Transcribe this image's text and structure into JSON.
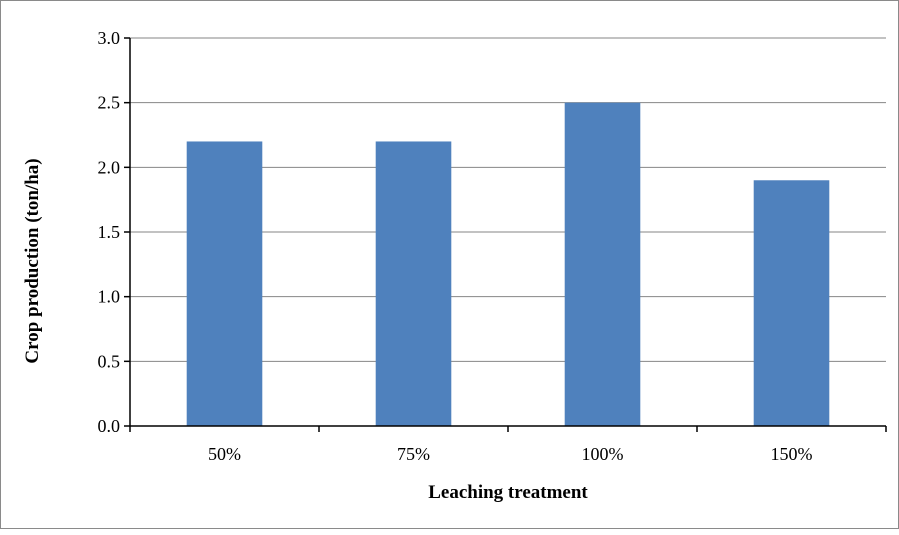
{
  "chart_data": {
    "type": "bar",
    "categories": [
      "50%",
      "75%",
      "100%",
      "150%"
    ],
    "values": [
      2.2,
      2.2,
      2.5,
      1.9
    ],
    "xlabel": "Leaching treatment",
    "ylabel": "Crop production (ton/ha)",
    "ylim": [
      0,
      3.0
    ],
    "yticks": [
      "0.0",
      "0.5",
      "1.0",
      "1.5",
      "2.0",
      "2.5",
      "3.0"
    ],
    "grid": true,
    "legend": "none",
    "colors": {
      "bar": "#4f81bd",
      "grid": "#868686",
      "axis": "#000000"
    }
  }
}
